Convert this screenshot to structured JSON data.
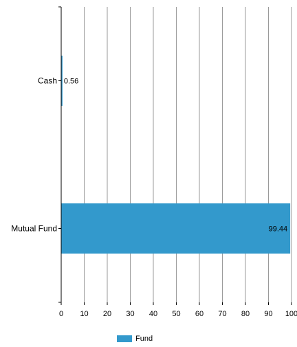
{
  "chart_data": {
    "type": "bar",
    "orientation": "horizontal",
    "categories": [
      "Cash",
      "Mutual Fund"
    ],
    "series": [
      {
        "name": "Fund",
        "values": [
          0.56,
          99.44
        ],
        "color": "#3399cc"
      }
    ],
    "data_labels": [
      "0.56",
      "99.44"
    ],
    "x_ticks": [
      0,
      10,
      20,
      30,
      40,
      50,
      60,
      70,
      80,
      90,
      100
    ],
    "xlim": [
      0,
      100
    ],
    "grid": "vertical",
    "legend_position": "bottom"
  }
}
